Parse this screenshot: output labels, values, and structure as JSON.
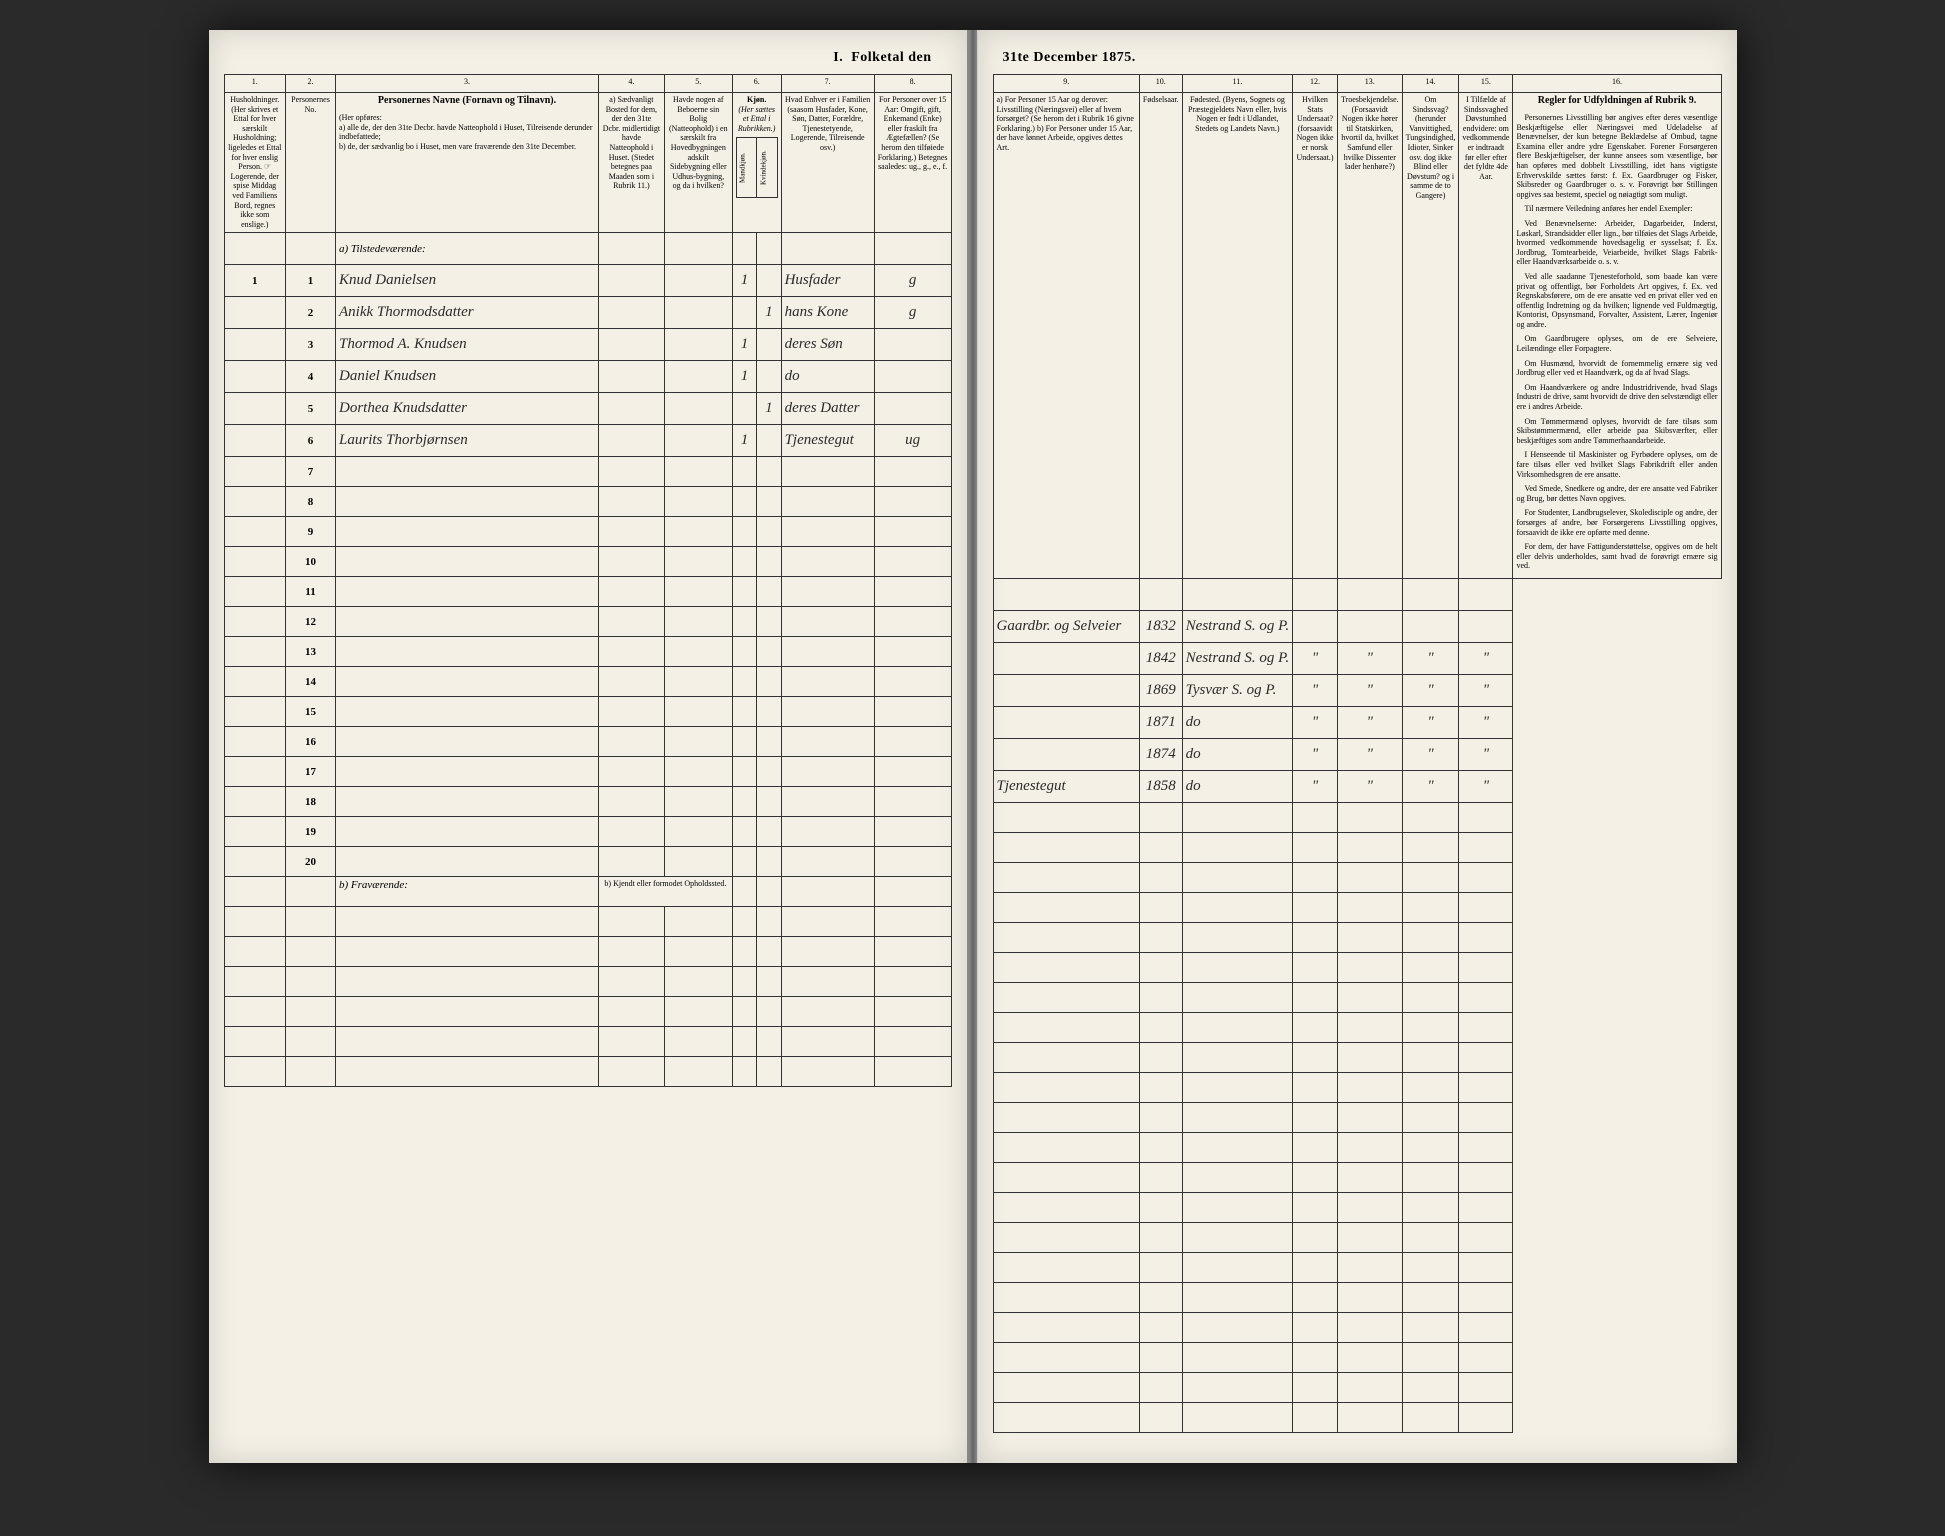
{
  "title": "I. Folketal den 31te December 1875.",
  "columns_left": {
    "c1": "1.",
    "c2": "2.",
    "c3": "3.",
    "c4": "4.",
    "c5": "5.",
    "c6": "6.",
    "c7": "7.",
    "c8": "8."
  },
  "columns_right": {
    "c9": "9.",
    "c10": "10.",
    "c11": "11.",
    "c12": "12.",
    "c13": "13.",
    "c14": "14.",
    "c15": "15.",
    "c16": "16."
  },
  "headers_left": {
    "h1": "Husholdninger. (Her skrives et Ettal for hver særskilt Husholdning; ligeledes et Ettal for hver enslig Person. ☞ Logerende, der spise Middag ved Familiens Bord, regnes ikke som enslige.)",
    "h2": "Personernes No.",
    "h3_title": "Personernes Navne (Fornavn og Tilnavn).",
    "h3_sub": "(Her opføres:\na) alle de, der den 31te Decbr. havde Natteophold i Huset, Tilreisende derunder indbefattede;\nb) de, der sædvanlig bo i Huset, men vare fraværende den 31te December.",
    "h4": "a) Sædvanligt Bosted for dem, der den 31te Dcbr. midlertidigt havde Natteophold i Huset.\n(Stedet betegnes paa Maaden som i Rubrik 11.)",
    "h5": "Havde nogen af Beboerne sin Bolig (Natteophold) i en særskilt fra Hovedbygningen adskilt Sidebygning eller Udhus-bygning, og da i hvilken?",
    "h6_title": "Kjøn.",
    "h6_sub": "(Her sættes et Ettal i Rubrikken.)",
    "h6a": "Mandkjøn.",
    "h6b": "Kvindekjøn.",
    "h7": "Hvad Enhver er i Familien (saasom Husfader, Kone, Søn, Datter, Forældre, Tjenestetyende, Logerende, Tilreisende osv.)",
    "h8": "For Personer over 15 Aar: Omgift, gift, Enkemand (Enke) eller fraskilt fra Ægtefællen? (Se herom den tilføiede Forklaring.) Betegnes saaledes: ug., g., e., f."
  },
  "headers_right": {
    "h9": "a) For Personer 15 Aar og derover: Livsstilling (Næringsvei) eller af hvem forsørget? (Se herom det i Rubrik 16 givne Forklaring.)\nb) For Personer under 15 Aar, der have lønnet Arbeide, opgives dettes Art.",
    "h10": "Fødselsaar.",
    "h11": "Fødested. (Byens, Sognets og Præstegjeldets Navn eller, hvis Nogen er født i Udlandet, Stedets og Landets Navn.)",
    "h12": "Hvilken Stats Undersaat? (forsaavidt Nogen ikke er norsk Undersaat.)",
    "h13": "Troesbekjendelse. (Forsaavidt Nogen ikke hører til Statskirken, hvortil da, hvilket Samfund eller hvilke Dissenter lader henhøre?)",
    "h14": "Om Sindssvag? (herunder Vanvittighed, Tungsindighed, Idioter, Sinker osv. dog ikke Blind eller Døvstum? og i samme de to Gangere)",
    "h15": "I Tilfælde af Sindssvaghed Døvstumhed endvidere: om vedkommende er indtraadt før eller efter det fyldte 4de Aar.",
    "h16": "Regler for Udfyldningen af Rubrik 9."
  },
  "section_a": "a) Tilstedeværende:",
  "section_b": "b) Fraværende:",
  "section_b_sub": "b) Kjendt eller formodet Opholdssted.",
  "rows": [
    {
      "n": "1",
      "p": "1",
      "name": "Knud Danielsen",
      "c4": "",
      "c5": "",
      "sex_m": "1",
      "sex_f": "",
      "rel": "Husfader",
      "mar": "g",
      "occ": "Gaardbr. og Selveier",
      "year": "1832",
      "place": "Nestrand S. og P.",
      "c12": "",
      "c13": "",
      "c14": "",
      "c15": ""
    },
    {
      "n": "",
      "p": "2",
      "name": "Anikk Thormodsdatter",
      "c4": "",
      "c5": "",
      "sex_m": "",
      "sex_f": "1",
      "rel": "hans Kone",
      "mar": "g",
      "occ": "",
      "year": "1842",
      "place": "Nestrand S. og P.",
      "c12": "\"",
      "c13": "\"",
      "c14": "\"",
      "c15": "\""
    },
    {
      "n": "",
      "p": "3",
      "name": "Thormod A. Knudsen",
      "c4": "",
      "c5": "",
      "sex_m": "1",
      "sex_f": "",
      "rel": "deres Søn",
      "mar": "",
      "occ": "",
      "year": "1869",
      "place": "Tysvær S. og P.",
      "c12": "\"",
      "c13": "\"",
      "c14": "\"",
      "c15": "\""
    },
    {
      "n": "",
      "p": "4",
      "name": "Daniel Knudsen",
      "c4": "",
      "c5": "",
      "sex_m": "1",
      "sex_f": "",
      "rel": "do",
      "mar": "",
      "occ": "",
      "year": "1871",
      "place": "do",
      "c12": "\"",
      "c13": "\"",
      "c14": "\"",
      "c15": "\""
    },
    {
      "n": "",
      "p": "5",
      "name": "Dorthea Knudsdatter",
      "c4": "",
      "c5": "",
      "sex_m": "",
      "sex_f": "1",
      "rel": "deres Datter",
      "mar": "",
      "occ": "",
      "year": "1874",
      "place": "do",
      "c12": "\"",
      "c13": "\"",
      "c14": "\"",
      "c15": "\""
    },
    {
      "n": "",
      "p": "6",
      "name": "Laurits Thorbjørnsen",
      "c4": "",
      "c5": "",
      "sex_m": "1",
      "sex_f": "",
      "rel": "Tjenestegut",
      "mar": "ug",
      "occ": "Tjenestegut",
      "year": "1858",
      "place": "do",
      "c12": "\"",
      "c13": "\"",
      "c14": "\"",
      "c15": "\""
    }
  ],
  "empty_rows_a": [
    "7",
    "8",
    "9",
    "10",
    "11",
    "12",
    "13",
    "14",
    "15",
    "16",
    "17",
    "18",
    "19",
    "20"
  ],
  "rules": {
    "heading": "Regler for Udfyldningen af Rubrik 9.",
    "paragraphs": [
      "Personernes Livsstilling bør angives efter deres væsentlige Beskjæftigelse eller Næringsvei med Udeladelse af Benævnelser, der kun betegne Beklædelse af Ombud, tagne Examina eller andre ydre Egenskaber. Forener Forsørgeren flere Beskjæftigelser, der kunne ansees som væsentlige, bør han opføres med dobbelt Livsstilling, idet hans vigtigste Erhvervskilde sættes først: f. Ex. Gaardbruger og Fisker, Skibsreder og Gaardbruger o. s. v. Forøvrigt bør Stillingen opgives saa bestemt, speciel og nøiagtigt som muligt.",
      "Til nærmere Veiledning anføres her endel Exempler:",
      "Ved Benævnelserne: Arbeider, Dagarbeider, Inderst, Løskarl, Strandsidder eller lign., bør tilføies det Slags Arbeide, hvormed vedkommende hovedsagelig er sysselsat; f. Ex. Jordbrug, Tomtearbeide, Veiarbeide, hvilket Slags Fabrik- eller Haandværksarbeide o. s. v.",
      "Ved alle saadanne Tjenesteforhold, som baade kan være privat og offentligt, bør Forholdets Art opgives, f. Ex. ved Regnskabsførere, om de ere ansatte ved en privat eller ved en offentlig Indretning og da hvilken; lignende ved Fuldmægtig, Kontorist, Opsynsmand, Forvalter, Assistent, Lærer, Ingeniør og andre.",
      "Om Gaardbrugere oplyses, om de ere Selveiere, Leilændinge eller Forpagtere.",
      "Om Husmænd, hvorvidt de fornemmelig ernære sig ved Jordbrug eller ved et Haandværk, og da af hvad Slags.",
      "Om Haandværkere og andre Industridrivende, hvad Slags Industri de drive, samt hvorvidt de drive den selvstændigt eller ere i andres Arbeide.",
      "Om Tømmermænd oplyses, hvorvidt de fare tilsøs som Skibstømmermænd, eller arbeide paa Skibsværfter, eller beskjæftiges som andre Tømmerhaandarbeide.",
      "I Henseende til Maskinister og Fyrbødere oplyses, om de fare tilsøs eller ved hvilket Slags Fabrikdrift eller anden Virksomhedsgren de ere ansatte.",
      "Ved Smede, Snedkere og andre, der ere ansatte ved Fabriker og Brug, bør dettes Navn opgives.",
      "For Studenter, Landbrugselever, Skoledisciple og andre, der forsørges af andre, bør Forsørgerens Livsstilling opgives, forsaavidt de ikke ere opførte med denne.",
      "For dem, der have Fattigunderstøttelse, opgives om de helt eller delvis underholdes, samt hvad de forøvrigt ernære sig ved."
    ]
  }
}
